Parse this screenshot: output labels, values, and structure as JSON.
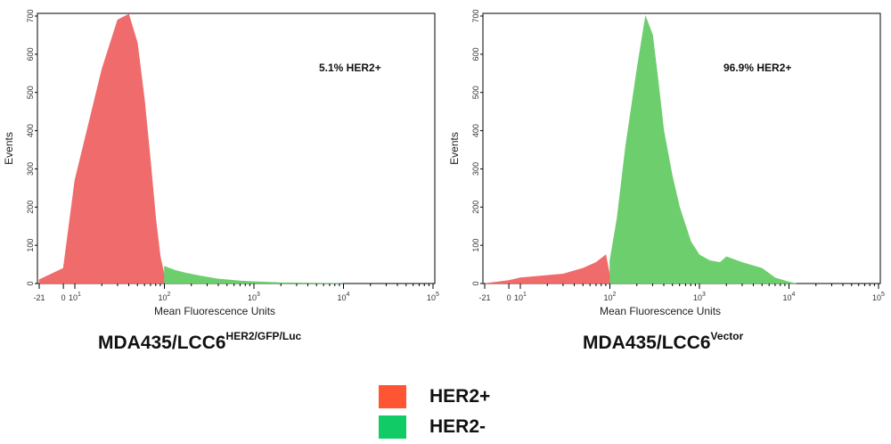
{
  "chart_data": [
    {
      "type": "area",
      "caption_main": "MDA435/LCC6",
      "caption_sup": "HER2/GFP/Luc",
      "annotation": "5.1% HER2+",
      "xlabel": "Mean Fluorescence Units",
      "ylabel": "Events",
      "xscale": "log",
      "ylim": [
        0,
        720
      ],
      "yticks": [
        "0",
        "100",
        "200",
        "300",
        "400",
        "500",
        "600",
        "700"
      ],
      "xticks": [
        "-21",
        "0",
        "10",
        "10",
        "10",
        "10",
        "10"
      ],
      "xtick_sups": [
        "",
        "",
        "1",
        "2",
        "3",
        "4",
        "5"
      ],
      "series": [
        {
          "name": "HER2+",
          "color": "#f06464",
          "x": [
            -21,
            0,
            10,
            20,
            30,
            40,
            50,
            60,
            70,
            80,
            90,
            100
          ],
          "y": [
            10,
            40,
            270,
            560,
            690,
            705,
            630,
            480,
            320,
            170,
            70,
            22
          ]
        },
        {
          "name": "HER2-",
          "color": "#66cc66",
          "x": [
            100,
            130,
            170,
            250,
            400,
            700,
            1000,
            2000,
            5000,
            10000
          ],
          "y": [
            45,
            35,
            28,
            20,
            12,
            7,
            5,
            2,
            1,
            0
          ]
        }
      ]
    },
    {
      "type": "area",
      "caption_main": "MDA435/LCC6",
      "caption_sup": "Vector",
      "annotation": "96.9% HER2+",
      "xlabel": "Mean Fluorescence Units",
      "ylabel": "Events",
      "xscale": "log",
      "ylim": [
        0,
        720
      ],
      "yticks": [
        "0",
        "100",
        "200",
        "300",
        "400",
        "500",
        "600",
        "700"
      ],
      "xticks": [
        "-21",
        "0",
        "10",
        "10",
        "10",
        "10",
        "10"
      ],
      "xtick_sups": [
        "",
        "",
        "1",
        "2",
        "3",
        "4",
        "5"
      ],
      "series": [
        {
          "name": "HER2+",
          "color": "#f06464",
          "x": [
            -21,
            0,
            10,
            30,
            50,
            70,
            90,
            100
          ],
          "y": [
            0,
            8,
            15,
            25,
            40,
            55,
            75,
            20
          ]
        },
        {
          "name": "HER2-",
          "color": "#66cc66",
          "x": [
            100,
            120,
            150,
            200,
            250,
            300,
            350,
            400,
            500,
            600,
            800,
            1000,
            1300,
            1700,
            2000,
            3000,
            5000,
            7000,
            10000,
            12000
          ],
          "y": [
            60,
            170,
            360,
            560,
            700,
            650,
            520,
            400,
            280,
            200,
            110,
            75,
            60,
            55,
            70,
            55,
            40,
            15,
            4,
            0
          ]
        }
      ]
    }
  ],
  "legend": [
    {
      "label": "HER2+",
      "color": "#ff5533"
    },
    {
      "label": "HER2-",
      "color": "#11cc66"
    }
  ]
}
